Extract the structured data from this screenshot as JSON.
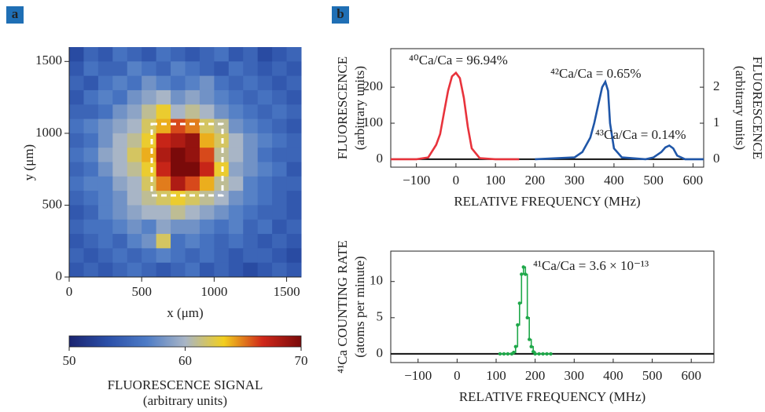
{
  "chart_data": [
    {
      "type": "heatmap",
      "panel": "a",
      "xlabel": "x (μm)",
      "ylabel": "y (μm)",
      "xlim": [
        0,
        1600
      ],
      "ylim": [
        0,
        1600
      ],
      "xticks": [
        0,
        500,
        1000,
        1500
      ],
      "yticks": [
        0,
        500,
        1000,
        1500
      ],
      "z": [
        [
          53,
          55,
          54,
          56,
          55,
          54,
          56,
          55,
          54,
          55,
          56,
          54,
          55,
          53,
          54,
          55
        ],
        [
          54,
          56,
          55,
          55,
          57,
          56,
          55,
          57,
          56,
          55,
          54,
          56,
          55,
          54,
          55,
          54
        ],
        [
          55,
          54,
          56,
          57,
          56,
          58,
          57,
          56,
          57,
          58,
          56,
          55,
          56,
          55,
          54,
          55
        ],
        [
          54,
          56,
          57,
          56,
          58,
          59,
          60,
          58,
          59,
          58,
          57,
          56,
          55,
          56,
          55,
          54
        ],
        [
          55,
          55,
          56,
          58,
          59,
          61,
          63,
          60,
          61,
          60,
          58,
          57,
          56,
          55,
          56,
          55
        ],
        [
          56,
          57,
          58,
          59,
          60,
          62,
          64,
          66,
          65,
          62,
          61,
          58,
          57,
          56,
          55,
          54
        ],
        [
          55,
          56,
          58,
          60,
          61,
          63,
          67,
          68,
          69,
          64,
          62,
          60,
          58,
          57,
          56,
          55
        ],
        [
          56,
          57,
          59,
          60,
          62,
          64,
          68,
          70,
          69,
          66,
          61,
          60,
          58,
          56,
          55,
          55
        ],
        [
          55,
          56,
          58,
          60,
          61,
          63,
          67,
          70,
          70,
          67,
          63,
          59,
          58,
          57,
          56,
          54
        ],
        [
          56,
          57,
          57,
          59,
          60,
          62,
          65,
          68,
          66,
          64,
          61,
          60,
          57,
          56,
          55,
          55
        ],
        [
          55,
          56,
          57,
          58,
          60,
          61,
          62,
          63,
          62,
          61,
          60,
          58,
          57,
          56,
          55,
          54
        ],
        [
          54,
          55,
          57,
          58,
          59,
          60,
          60,
          61,
          60,
          59,
          58,
          57,
          56,
          55,
          55,
          54
        ],
        [
          55,
          56,
          56,
          57,
          58,
          57,
          59,
          58,
          58,
          57,
          56,
          57,
          55,
          56,
          54,
          55
        ],
        [
          54,
          55,
          56,
          55,
          57,
          58,
          62,
          56,
          57,
          56,
          55,
          56,
          55,
          54,
          55,
          54
        ],
        [
          55,
          54,
          55,
          56,
          55,
          56,
          57,
          56,
          55,
          56,
          55,
          54,
          55,
          55,
          54,
          53
        ],
        [
          54,
          55,
          54,
          55,
          56,
          55,
          54,
          55,
          56,
          54,
          55,
          54,
          53,
          54,
          55,
          54
        ]
      ],
      "colormap": [
        "#1a2470",
        "#2b4fa8",
        "#4d7bc6",
        "#a8b5c6",
        "#f2cf1e",
        "#d0281a",
        "#7a0a0a"
      ],
      "clim": [
        50,
        70
      ],
      "cticks": [
        50,
        60,
        70
      ],
      "colorbar_label": [
        "FLUORESCENCE SIGNAL",
        "(arbitrary units)"
      ]
    },
    {
      "type": "line",
      "panel": "b",
      "xlabel": "RELATIVE FREQUENCY (MHz)",
      "ylabel": [
        "FLUORESCENCE",
        "(arbitrary units)"
      ],
      "y2label": [
        "FLUORESCENCE",
        "(arbitrary units)"
      ],
      "xlim": [
        -165,
        627
      ],
      "ylim": [
        -22,
        307
      ],
      "y2lim": [
        -0.22,
        3.07
      ],
      "xticks": [
        {
          "value": -100,
          "label": "−100"
        },
        0,
        100,
        200,
        300,
        400,
        500,
        600
      ],
      "yticks": [
        0,
        100,
        200
      ],
      "y2ticks": [
        0,
        1,
        2
      ],
      "zero_line": true,
      "series": [
        {
          "color": "#e8333c",
          "x": [
            -165,
            -100,
            -70,
            -50,
            -40,
            -30,
            -20,
            -10,
            0,
            10,
            20,
            30,
            40,
            60,
            100,
            160
          ],
          "values": [
            0,
            0,
            5,
            40,
            70,
            130,
            190,
            230,
            240,
            225,
            170,
            90,
            30,
            3,
            0,
            0
          ]
        },
        {
          "color": "#1f56a8",
          "axis": "y2",
          "x": [
            200,
            300,
            320,
            340,
            350,
            360,
            370,
            378,
            385,
            390,
            400,
            420,
            480,
            500,
            520,
            530,
            540,
            550,
            560,
            580,
            627
          ],
          "values": [
            0,
            0.05,
            0.2,
            0.6,
            1.0,
            1.5,
            2.0,
            2.15,
            1.9,
            1.0,
            0.3,
            0.05,
            0,
            0.05,
            0.2,
            0.33,
            0.38,
            0.3,
            0.1,
            0,
            0
          ]
        }
      ],
      "annotations": [
        {
          "text": "⁴⁰Ca/Ca = 96.94%",
          "color": "#e8333c"
        },
        {
          "text": "⁴²Ca/Ca = 0.65%",
          "color": "#1f56a8"
        },
        {
          "text": "⁴³Ca/Ca = 0.14%",
          "color": "#1f56a8"
        }
      ]
    },
    {
      "type": "step",
      "xlabel": "RELATIVE FREQUENCY (MHz)",
      "ylabel": [
        "⁴¹Ca COUNTING RATE",
        "(atoms per minute)"
      ],
      "xlim": [
        -170,
        658
      ],
      "ylim": [
        -1.2,
        14.2
      ],
      "xticks": [
        {
          "value": -100,
          "label": "−100"
        },
        0,
        100,
        200,
        300,
        400,
        500,
        600
      ],
      "yticks": [
        0,
        5,
        10
      ],
      "zero_line": true,
      "series": [
        {
          "color": "#1fa84a",
          "x": [
            110,
            120,
            130,
            140,
            145,
            150,
            155,
            160,
            165,
            170,
            175,
            180,
            185,
            190,
            195,
            200,
            210,
            220,
            230,
            240
          ],
          "values": [
            0,
            0,
            0,
            0,
            0.2,
            1,
            4,
            7,
            11,
            12,
            11,
            5,
            2,
            1,
            0.3,
            0,
            0,
            0,
            0,
            0
          ]
        }
      ],
      "annotations": [
        {
          "text": "⁴¹Ca/Ca = 3.6 × 10⁻¹³",
          "color": "#1fa84a"
        }
      ]
    }
  ]
}
